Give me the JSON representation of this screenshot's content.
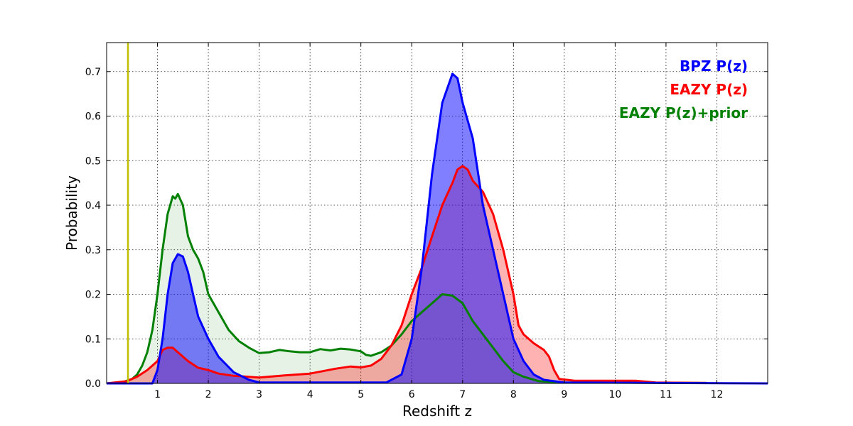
{
  "chart_data": {
    "type": "area",
    "xlabel": "Redshift z",
    "ylabel": "Probability",
    "xlim": [
      0,
      13
    ],
    "ylim": [
      0,
      0.765
    ],
    "x_ticks": [
      1,
      2,
      3,
      4,
      5,
      6,
      7,
      8,
      9,
      10,
      11,
      12
    ],
    "y_ticks": [
      0.0,
      0.1,
      0.2,
      0.3,
      0.4,
      0.5,
      0.6,
      0.7
    ],
    "grid": true,
    "legend_position": "top-right",
    "vertical_line": {
      "x": 0.42,
      "color": "#bfbf00"
    },
    "series": [
      {
        "name": "EAZY P(z)+prior",
        "color": "#008000",
        "fill_opacity": 0.1,
        "points": [
          [
            0,
            0
          ],
          [
            0.3,
            0.002
          ],
          [
            0.5,
            0.01
          ],
          [
            0.6,
            0.02
          ],
          [
            0.7,
            0.04
          ],
          [
            0.8,
            0.07
          ],
          [
            0.9,
            0.12
          ],
          [
            1.0,
            0.2
          ],
          [
            1.1,
            0.3
          ],
          [
            1.2,
            0.38
          ],
          [
            1.3,
            0.42
          ],
          [
            1.35,
            0.415
          ],
          [
            1.4,
            0.425
          ],
          [
            1.5,
            0.4
          ],
          [
            1.6,
            0.33
          ],
          [
            1.7,
            0.3
          ],
          [
            1.8,
            0.28
          ],
          [
            1.9,
            0.25
          ],
          [
            2.0,
            0.2
          ],
          [
            2.2,
            0.16
          ],
          [
            2.4,
            0.12
          ],
          [
            2.6,
            0.095
          ],
          [
            2.8,
            0.08
          ],
          [
            3.0,
            0.068
          ],
          [
            3.2,
            0.07
          ],
          [
            3.4,
            0.075
          ],
          [
            3.6,
            0.072
          ],
          [
            3.8,
            0.07
          ],
          [
            4.0,
            0.07
          ],
          [
            4.2,
            0.077
          ],
          [
            4.4,
            0.074
          ],
          [
            4.6,
            0.078
          ],
          [
            4.8,
            0.076
          ],
          [
            5.0,
            0.072
          ],
          [
            5.1,
            0.064
          ],
          [
            5.2,
            0.062
          ],
          [
            5.4,
            0.07
          ],
          [
            5.6,
            0.085
          ],
          [
            5.8,
            0.11
          ],
          [
            6.0,
            0.14
          ],
          [
            6.2,
            0.16
          ],
          [
            6.4,
            0.18
          ],
          [
            6.6,
            0.2
          ],
          [
            6.8,
            0.197
          ],
          [
            7.0,
            0.18
          ],
          [
            7.2,
            0.14
          ],
          [
            7.4,
            0.11
          ],
          [
            7.6,
            0.08
          ],
          [
            7.8,
            0.05
          ],
          [
            8.0,
            0.025
          ],
          [
            8.2,
            0.015
          ],
          [
            8.5,
            0.005
          ],
          [
            9.0,
            0.002
          ],
          [
            11.8,
            0.001
          ]
        ]
      },
      {
        "name": "EAZY P(z)",
        "color": "#ff0000",
        "fill_opacity": 0.3,
        "points": [
          [
            0,
            0
          ],
          [
            0.4,
            0.005
          ],
          [
            0.6,
            0.015
          ],
          [
            0.8,
            0.03
          ],
          [
            1.0,
            0.05
          ],
          [
            1.1,
            0.075
          ],
          [
            1.2,
            0.08
          ],
          [
            1.3,
            0.08
          ],
          [
            1.4,
            0.07
          ],
          [
            1.6,
            0.05
          ],
          [
            1.8,
            0.035
          ],
          [
            2.0,
            0.03
          ],
          [
            2.2,
            0.022
          ],
          [
            2.5,
            0.017
          ],
          [
            3.0,
            0.013
          ],
          [
            3.5,
            0.018
          ],
          [
            4.0,
            0.022
          ],
          [
            4.5,
            0.033
          ],
          [
            4.8,
            0.038
          ],
          [
            5.0,
            0.036
          ],
          [
            5.2,
            0.04
          ],
          [
            5.4,
            0.055
          ],
          [
            5.6,
            0.085
          ],
          [
            5.8,
            0.13
          ],
          [
            6.0,
            0.2
          ],
          [
            6.2,
            0.26
          ],
          [
            6.4,
            0.33
          ],
          [
            6.6,
            0.4
          ],
          [
            6.8,
            0.45
          ],
          [
            6.9,
            0.48
          ],
          [
            7.0,
            0.488
          ],
          [
            7.1,
            0.48
          ],
          [
            7.2,
            0.455
          ],
          [
            7.4,
            0.43
          ],
          [
            7.6,
            0.38
          ],
          [
            7.8,
            0.3
          ],
          [
            8.0,
            0.2
          ],
          [
            8.1,
            0.13
          ],
          [
            8.2,
            0.11
          ],
          [
            8.4,
            0.09
          ],
          [
            8.6,
            0.075
          ],
          [
            8.7,
            0.06
          ],
          [
            8.8,
            0.03
          ],
          [
            8.9,
            0.01
          ],
          [
            9.2,
            0.006
          ],
          [
            10.4,
            0.006
          ],
          [
            10.8,
            0.002
          ],
          [
            11.8,
            0.001
          ]
        ]
      },
      {
        "name": "BPZ P(z)",
        "color": "#0000ff",
        "fill_opacity": 0.5,
        "points": [
          [
            0,
            0
          ],
          [
            0.9,
            0.0
          ],
          [
            1.0,
            0.03
          ],
          [
            1.1,
            0.1
          ],
          [
            1.2,
            0.2
          ],
          [
            1.3,
            0.27
          ],
          [
            1.4,
            0.29
          ],
          [
            1.5,
            0.285
          ],
          [
            1.6,
            0.25
          ],
          [
            1.7,
            0.2
          ],
          [
            1.8,
            0.15
          ],
          [
            2.0,
            0.1
          ],
          [
            2.2,
            0.06
          ],
          [
            2.5,
            0.025
          ],
          [
            2.8,
            0.008
          ],
          [
            3.0,
            0.002
          ],
          [
            5.5,
            0.002
          ],
          [
            5.8,
            0.02
          ],
          [
            6.0,
            0.1
          ],
          [
            6.2,
            0.26
          ],
          [
            6.4,
            0.47
          ],
          [
            6.6,
            0.63
          ],
          [
            6.8,
            0.695
          ],
          [
            6.9,
            0.685
          ],
          [
            7.0,
            0.63
          ],
          [
            7.2,
            0.55
          ],
          [
            7.4,
            0.4
          ],
          [
            7.6,
            0.3
          ],
          [
            7.8,
            0.2
          ],
          [
            8.0,
            0.1
          ],
          [
            8.2,
            0.05
          ],
          [
            8.4,
            0.02
          ],
          [
            8.6,
            0.008
          ],
          [
            9.0,
            0.002
          ],
          [
            13.0,
            0.0
          ]
        ]
      }
    ],
    "legend": [
      {
        "label": "BPZ P(z)",
        "color": "#0000ff"
      },
      {
        "label": "EAZY P(z)",
        "color": "#ff0000"
      },
      {
        "label": "EAZY P(z)+prior",
        "color": "#008000"
      }
    ]
  }
}
